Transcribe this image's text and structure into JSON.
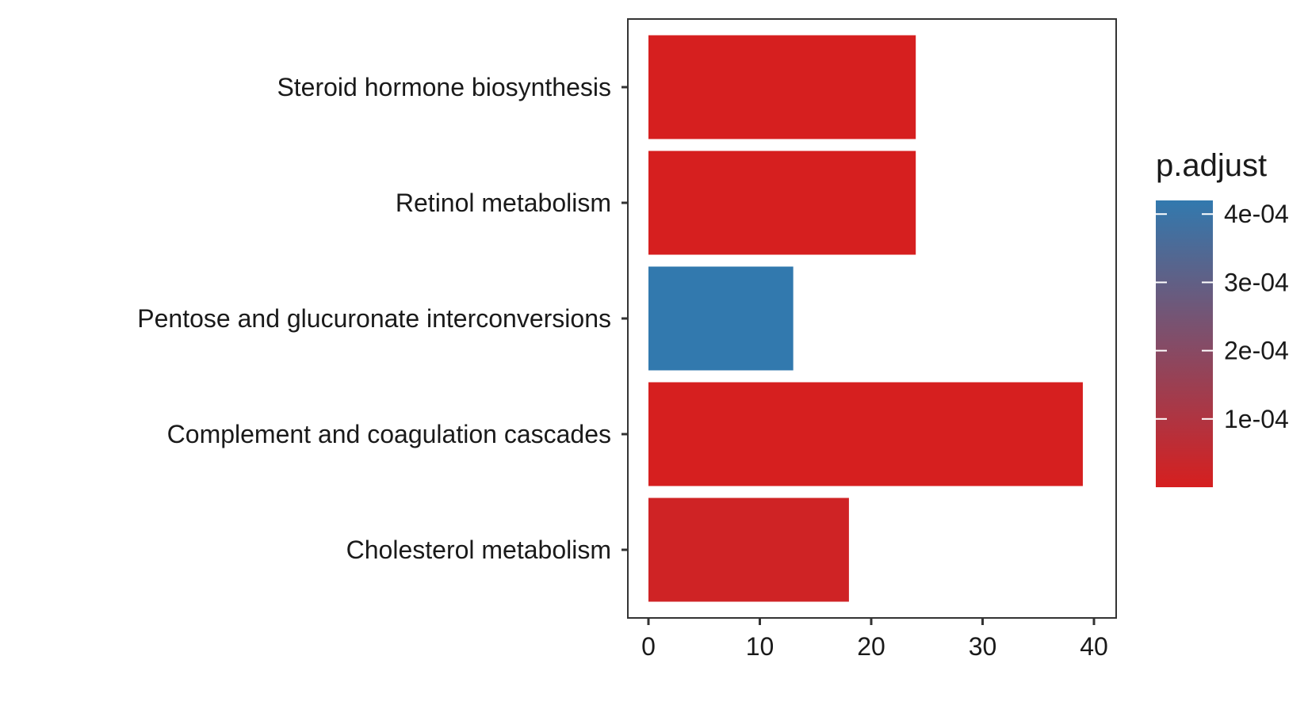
{
  "chart_data": {
    "type": "bar",
    "orientation": "horizontal",
    "categories": [
      "Steroid hormone biosynthesis",
      "Retinol metabolism",
      "Pentose and glucuronate interconversions",
      "Complement and coagulation cascades",
      "Cholesterol metabolism"
    ],
    "values": [
      24,
      24,
      13,
      39,
      18
    ],
    "p_adjust": [
      1e-06,
      1e-06,
      0.00042,
      1e-07,
      1.8e-05
    ],
    "xlim": [
      0,
      40
    ],
    "x_ticks": [
      0,
      10,
      20,
      30,
      40
    ],
    "x_tick_labels": [
      "0",
      "10",
      "20",
      "30",
      "40"
    ],
    "grid": false,
    "legend": {
      "title": "p.adjust",
      "placement": "right",
      "type": "colorbar",
      "range": [
        0,
        0.00042
      ],
      "ticks": [
        0.0001,
        0.0002,
        0.0003,
        0.0004
      ],
      "tick_labels": [
        "1e-04",
        "2e-04",
        "3e-04",
        "4e-04"
      ],
      "low_color": "#d61f1f",
      "high_color": "#3279ae"
    }
  }
}
